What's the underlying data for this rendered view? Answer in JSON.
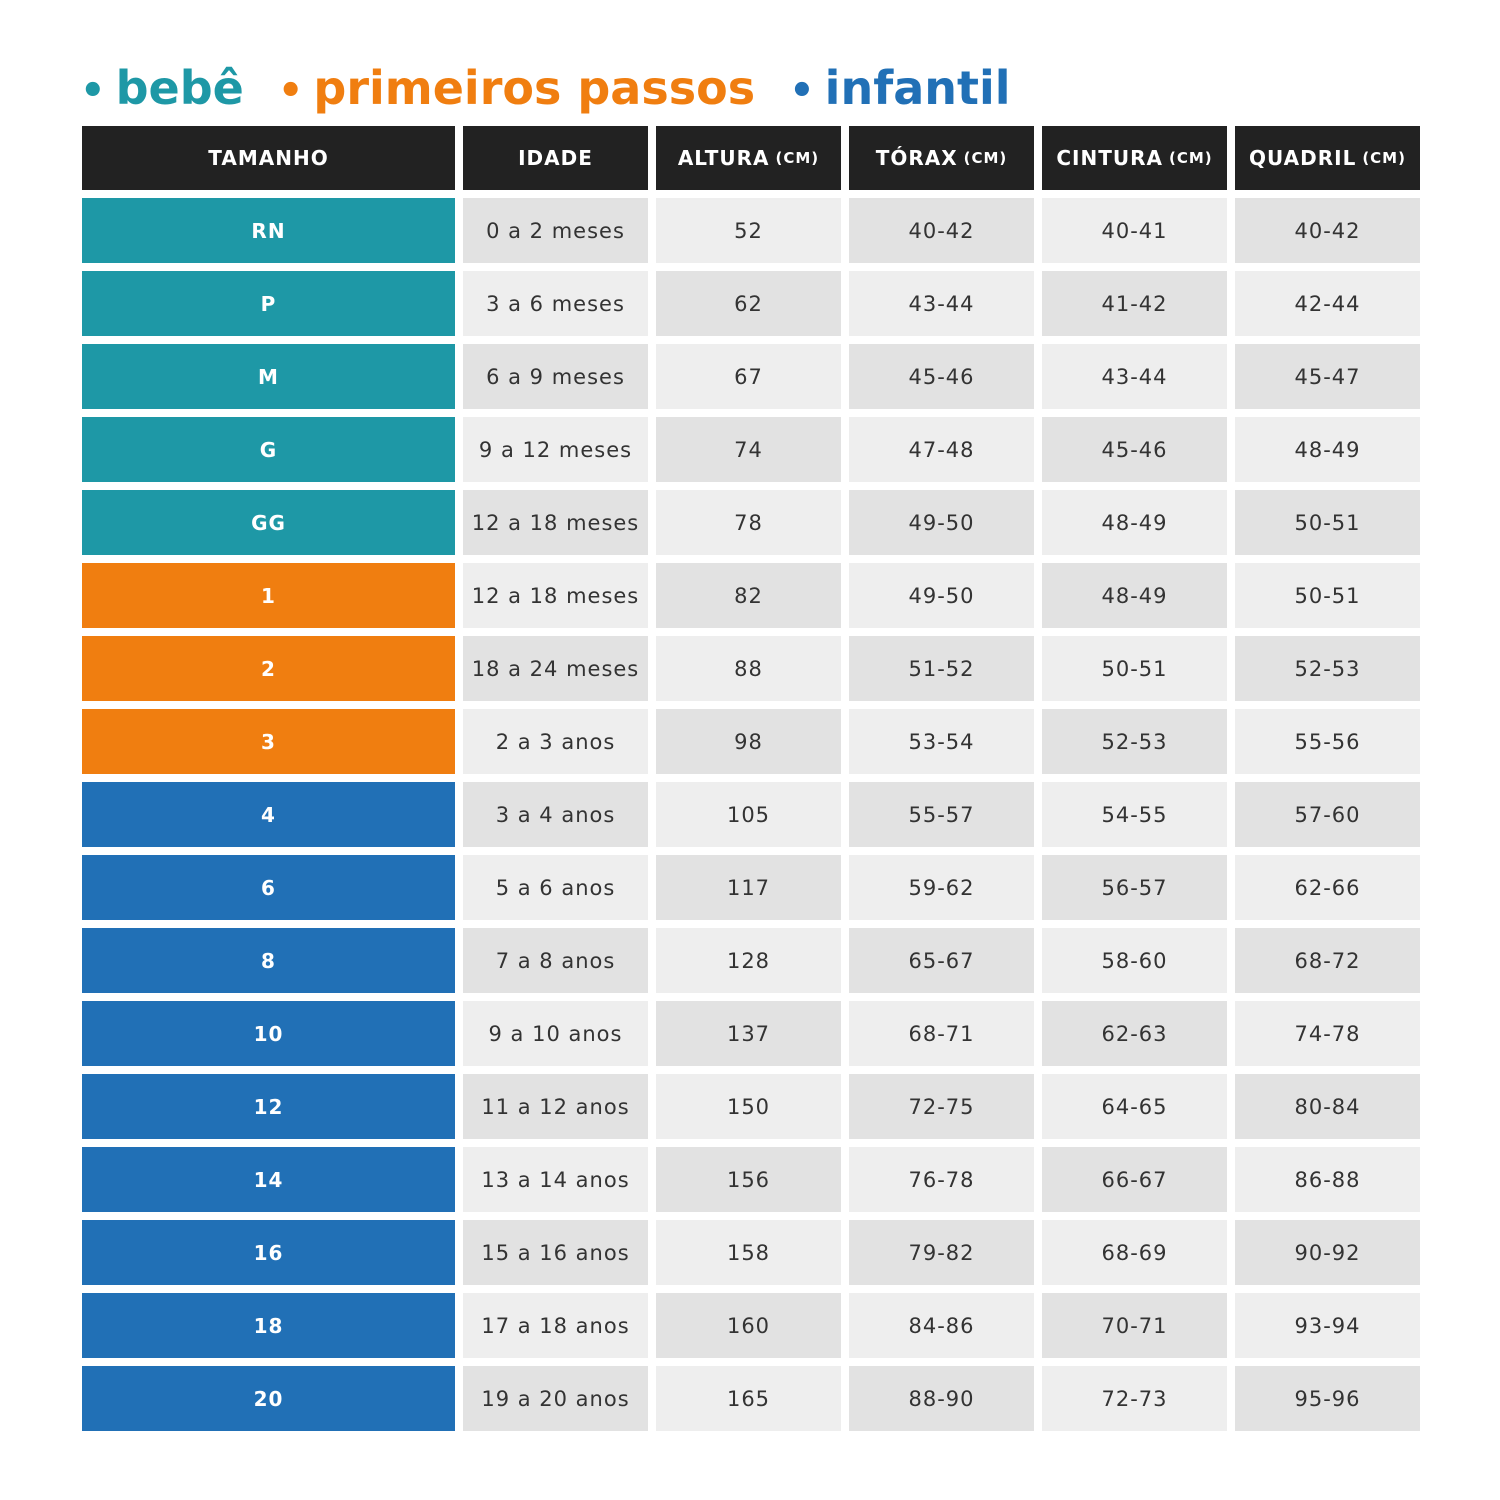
{
  "table": {
    "header": [
      {
        "label": "TAMANHO"
      },
      {
        "label": "IDADE"
      },
      {
        "label": "ALTURA",
        "unit": "(CM)"
      },
      {
        "label": "TÓRAX",
        "unit": "(CM)"
      },
      {
        "label": "CINTURA",
        "unit": "(CM)"
      },
      {
        "label": "QUADRIL",
        "unit": "(CM)"
      }
    ],
    "groups": [
      {
        "label": "bebê",
        "color": "#1e98a6",
        "rows": [
          {
            "size": "RN",
            "age": "0 a 2 meses",
            "height": 52,
            "chest": "40-42",
            "waist": "40-41",
            "hip": "40-42"
          },
          {
            "size": "P",
            "age": "3 a 6 meses",
            "height": 62,
            "chest": "43-44",
            "waist": "41-42",
            "hip": "42-44"
          },
          {
            "size": "M",
            "age": "6 a 9 meses",
            "height": 67,
            "chest": "45-46",
            "waist": "43-44",
            "hip": "45-47"
          },
          {
            "size": "G",
            "age": "9 a 12 meses",
            "height": 74,
            "chest": "47-48",
            "waist": "45-46",
            "hip": "48-49"
          },
          {
            "size": "GG",
            "age": "12 a 18 meses",
            "height": 78,
            "chest": "49-50",
            "waist": "48-49",
            "hip": "50-51"
          }
        ]
      },
      {
        "label": "primeiros passos",
        "color": "#f07e10",
        "rows": [
          {
            "size": "1",
            "age": "12 a 18 meses",
            "height": 82,
            "chest": "49-50",
            "waist": "48-49",
            "hip": "50-51"
          },
          {
            "size": "2",
            "age": "18 a 24 meses",
            "height": 88,
            "chest": "51-52",
            "waist": "50-51",
            "hip": "52-53"
          },
          {
            "size": "3",
            "age": "2 a 3 anos",
            "height": 98,
            "chest": "53-54",
            "waist": "52-53",
            "hip": "55-56"
          }
        ]
      },
      {
        "label": "infantil",
        "color": "#2170b6",
        "rows": [
          {
            "size": "4",
            "age": "3 a 4 anos",
            "height": 105,
            "chest": "55-57",
            "waist": "54-55",
            "hip": "57-60"
          },
          {
            "size": "6",
            "age": "5 a 6 anos",
            "height": 117,
            "chest": "59-62",
            "waist": "56-57",
            "hip": "62-66"
          },
          {
            "size": "8",
            "age": "7 a 8 anos",
            "height": 128,
            "chest": "65-67",
            "waist": "58-60",
            "hip": "68-72"
          },
          {
            "size": "10",
            "age": "9 a 10 anos",
            "height": 137,
            "chest": "68-71",
            "waist": "62-63",
            "hip": "74-78"
          },
          {
            "size": "12",
            "age": "11 a 12 anos",
            "height": 150,
            "chest": "72-75",
            "waist": "64-65",
            "hip": "80-84"
          },
          {
            "size": "14",
            "age": "13 a 14 anos",
            "height": 156,
            "chest": "76-78",
            "waist": "66-67",
            "hip": "86-88"
          },
          {
            "size": "16",
            "age": "15 a 16 anos",
            "height": 158,
            "chest": "79-82",
            "waist": "68-69",
            "hip": "90-92"
          },
          {
            "size": "18",
            "age": "17 a 18 anos",
            "height": 160,
            "chest": "84-86",
            "waist": "70-71",
            "hip": "93-94"
          },
          {
            "size": "20",
            "age": "19 a 20 anos",
            "height": 165,
            "chest": "88-90",
            "waist": "72-73",
            "hip": "95-96"
          }
        ]
      }
    ]
  }
}
